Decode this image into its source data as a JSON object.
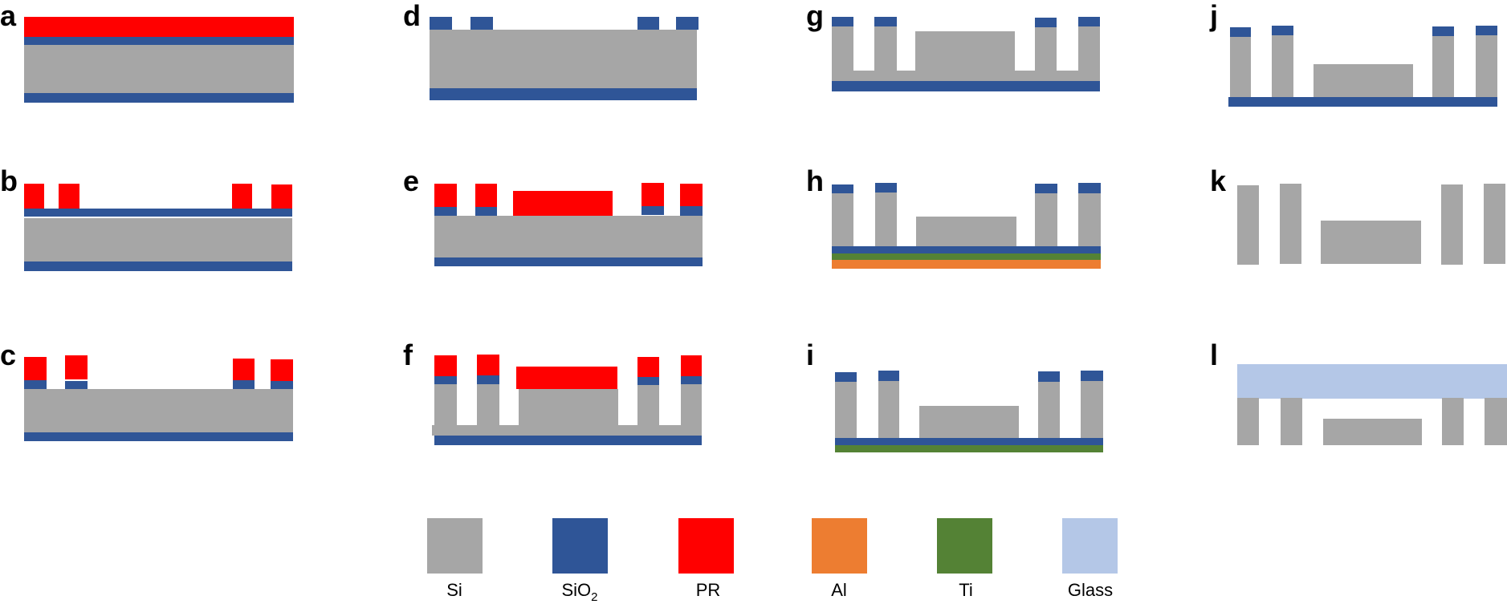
{
  "materials": {
    "si": {
      "name": "Si",
      "color": "#A6A6A6"
    },
    "sio2": {
      "name": "SiO",
      "subscript": "2",
      "color": "#2F5597"
    },
    "pr": {
      "name": "PR",
      "color": "#FF0000"
    },
    "al": {
      "name": "Al",
      "color": "#ED7D31"
    },
    "ti": {
      "name": "Ti",
      "color": "#548235"
    },
    "glass": {
      "name": "Glass",
      "color": "#B4C7E7"
    }
  },
  "legend_order": [
    "si",
    "sio2",
    "pr",
    "al",
    "ti",
    "glass"
  ],
  "panels": [
    {
      "label": "a"
    },
    {
      "label": "b"
    },
    {
      "label": "c"
    },
    {
      "label": "d"
    },
    {
      "label": "e"
    },
    {
      "label": "f"
    },
    {
      "label": "g"
    },
    {
      "label": "h"
    },
    {
      "label": "i"
    },
    {
      "label": "j"
    },
    {
      "label": "k"
    },
    {
      "label": "l"
    }
  ]
}
